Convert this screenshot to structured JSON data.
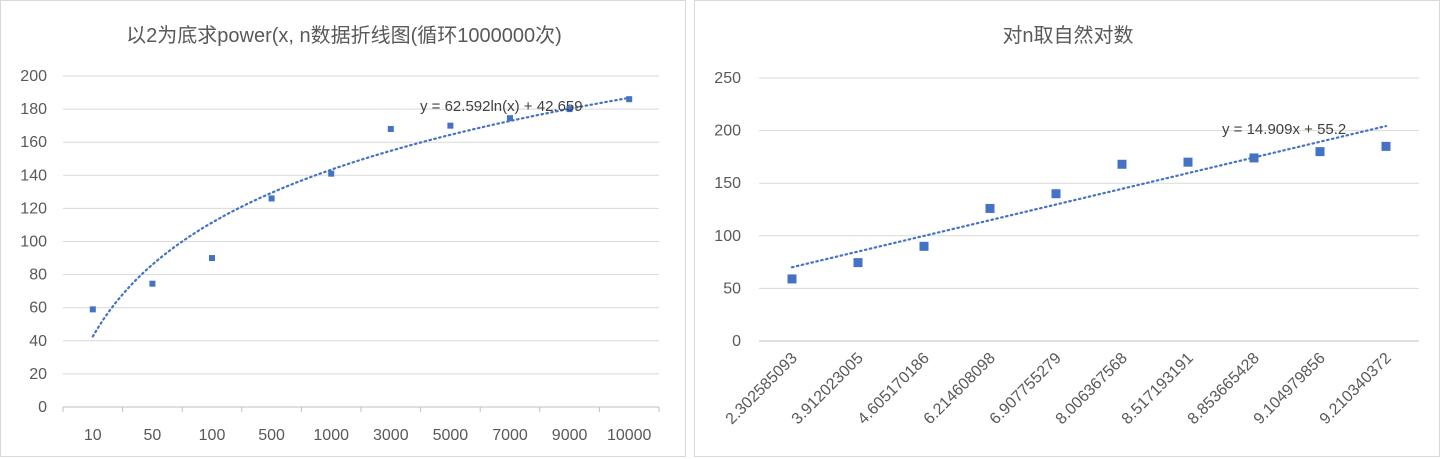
{
  "chart_data": [
    {
      "type": "scatter",
      "title": "以2为底求power(x, n数据折线图(循环1000000次)",
      "x_categories": [
        "10",
        "50",
        "100",
        "500",
        "1000",
        "3000",
        "5000",
        "7000",
        "9000",
        "10000"
      ],
      "y_ticks": [
        "0",
        "20",
        "40",
        "60",
        "80",
        "100",
        "120",
        "140",
        "160",
        "180",
        "200"
      ],
      "ylim": [
        0,
        200
      ],
      "grid": true,
      "values": [
        59,
        74.5,
        90,
        126,
        141,
        168,
        170,
        174.5,
        180,
        186
      ],
      "marker_color": "#4472c4",
      "trendline": {
        "type": "logarithmic",
        "equation": "y = 62.592ln(x) + 42.659",
        "a": 62.592,
        "b": 42.659,
        "color": "#4472c4"
      }
    },
    {
      "type": "scatter",
      "title": "对n取自然对数",
      "x_categories": [
        "2.302585093",
        "3.912023005",
        "4.605170186",
        "6.214608098",
        "6.907755279",
        "8.006367568",
        "8.517193191",
        "8.853665428",
        "9.104979856",
        "9.210340372"
      ],
      "y_ticks": [
        "0",
        "50",
        "100",
        "150",
        "200",
        "250"
      ],
      "ylim": [
        0,
        250
      ],
      "grid": true,
      "values": [
        59,
        74.5,
        90,
        126,
        140,
        168,
        170,
        174,
        180,
        185
      ],
      "marker_color": "#4472c4",
      "trendline": {
        "type": "linear",
        "equation": "y = 14.909x + 55.2",
        "a": 14.909,
        "b": 55.2,
        "color": "#4472c4"
      }
    }
  ]
}
